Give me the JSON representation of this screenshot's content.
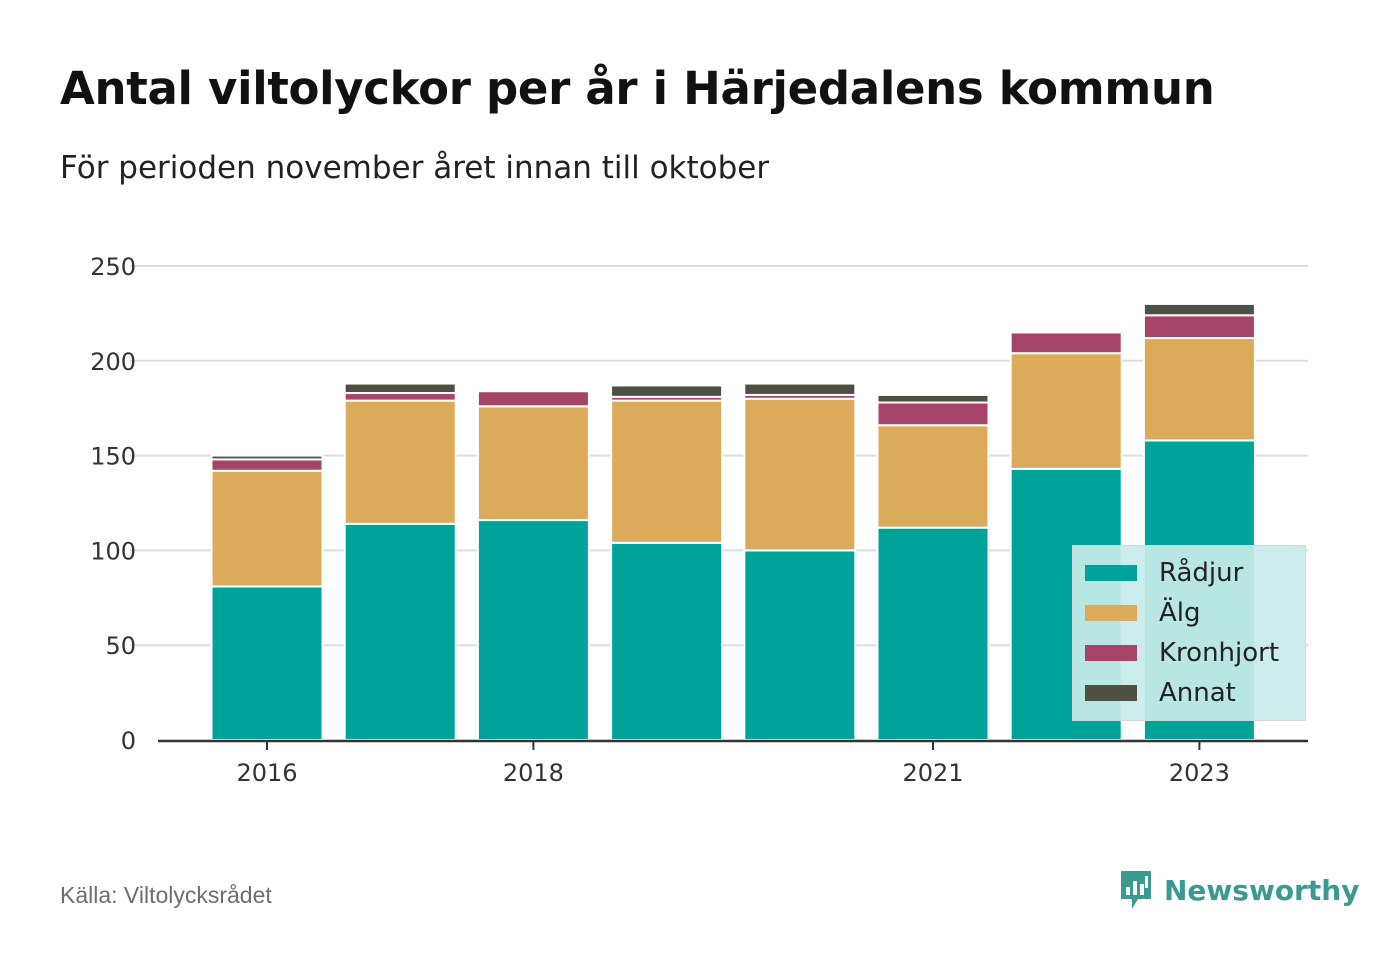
{
  "title": "Antal viltolyckor per år i Härjedalens kommun",
  "subtitle": "För perioden november året innan till oktober",
  "source": "Källa: Viltolycksrådet",
  "brand": "Newsworthy",
  "colors": {
    "radjur": "#00a39a",
    "alg": "#dbab5b",
    "kronhjort": "#a54468",
    "annat": "#4d5042",
    "grid": "#dddddd",
    "axis": "#333333",
    "brand": "#3a9a92"
  },
  "chart_data": {
    "type": "bar",
    "stacked": true,
    "x": [
      2016,
      2017,
      2018,
      2019,
      2020,
      2021,
      2022,
      2023
    ],
    "xticks": [
      "2016",
      "2018",
      "2021",
      "2023"
    ],
    "xtick_values": [
      2016,
      2018,
      2021,
      2023
    ],
    "ylim": [
      0,
      250
    ],
    "yticks": [
      "0",
      "50",
      "100",
      "150",
      "200",
      "250"
    ],
    "ytick_values": [
      0,
      50,
      100,
      150,
      200,
      250
    ],
    "grid": true,
    "legend_position": "bottom-right",
    "series": [
      {
        "name": "Rådjur",
        "key": "radjur",
        "values": [
          81,
          114,
          116,
          104,
          100,
          112,
          143,
          158
        ]
      },
      {
        "name": "Älg",
        "key": "alg",
        "values": [
          61,
          65,
          60,
          75,
          80,
          54,
          61,
          54
        ]
      },
      {
        "name": "Kronhjort",
        "key": "kronhjort",
        "values": [
          6,
          4,
          8,
          2,
          2,
          12,
          11,
          12
        ]
      },
      {
        "name": "Annat",
        "key": "annat",
        "values": [
          2,
          5,
          1,
          6,
          6,
          4,
          1,
          6
        ]
      }
    ]
  }
}
